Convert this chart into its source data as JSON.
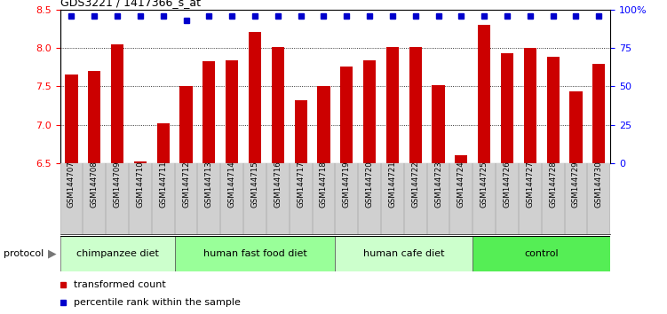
{
  "title": "GDS3221 / 1417366_s_at",
  "samples": [
    "GSM144707",
    "GSM144708",
    "GSM144709",
    "GSM144710",
    "GSM144711",
    "GSM144712",
    "GSM144713",
    "GSM144714",
    "GSM144715",
    "GSM144716",
    "GSM144717",
    "GSM144718",
    "GSM144719",
    "GSM144720",
    "GSM144721",
    "GSM144722",
    "GSM144723",
    "GSM144724",
    "GSM144725",
    "GSM144726",
    "GSM144727",
    "GSM144728",
    "GSM144729",
    "GSM144730"
  ],
  "bar_values": [
    7.65,
    7.7,
    8.05,
    6.52,
    7.02,
    7.5,
    7.83,
    7.84,
    8.21,
    8.01,
    7.32,
    7.5,
    7.76,
    7.84,
    8.01,
    8.01,
    7.52,
    6.6,
    8.3,
    7.93,
    8.0,
    7.88,
    7.43,
    7.79
  ],
  "percentile_high": [
    true,
    true,
    true,
    true,
    true,
    false,
    true,
    true,
    true,
    true,
    true,
    true,
    true,
    true,
    true,
    true,
    true,
    true,
    true,
    true,
    true,
    true,
    true,
    true
  ],
  "groups": [
    {
      "label": "chimpanzee diet",
      "start": 0,
      "end": 5,
      "color": "#ccffcc"
    },
    {
      "label": "human fast food diet",
      "start": 5,
      "end": 12,
      "color": "#99ff99"
    },
    {
      "label": "human cafe diet",
      "start": 12,
      "end": 18,
      "color": "#ccffcc"
    },
    {
      "label": "control",
      "start": 18,
      "end": 24,
      "color": "#55ee55"
    }
  ],
  "ylim_left": [
    6.5,
    8.5
  ],
  "yticks_left": [
    6.5,
    7.0,
    7.5,
    8.0,
    8.5
  ],
  "yticks_right": [
    0,
    25,
    50,
    75,
    100
  ],
  "bar_color": "#cc0000",
  "dot_color": "#0000cc",
  "background_color": "#ffffff",
  "xtick_bg": "#d0d0d0",
  "group_border": "#444444"
}
